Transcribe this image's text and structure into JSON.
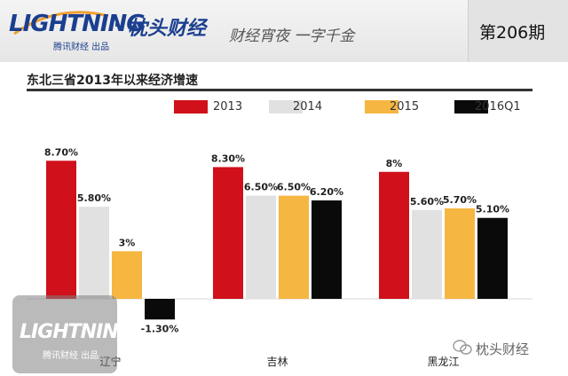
{
  "header": {
    "logo_word": "LIGHTNING",
    "logo_sub": "腾讯财经 出品",
    "brand_dot": "·",
    "brand": "枕头财经",
    "slogan": "财经宵夜 一字千金",
    "issue": "第206期"
  },
  "watermark": {
    "logo_word": "LIGHTNING",
    "logo_sub": "腾讯财经 出品",
    "account": "枕头财经",
    "icon": "wechat-icon"
  },
  "colors": {
    "2013": "#d0101a",
    "2014": "#e1e1e1",
    "2015": "#f5b642",
    "2016Q1": "#0a0a0a"
  },
  "chart_data": {
    "type": "bar",
    "title": "东北三省2013年以来经济增速",
    "categories": [
      "辽宁",
      "吉林",
      "黑龙江"
    ],
    "series": [
      {
        "name": "2013",
        "values": [
          8.7,
          8.3,
          8.0
        ],
        "labels": [
          "8.70%",
          "8.30%",
          "8%"
        ]
      },
      {
        "name": "2014",
        "values": [
          5.8,
          6.5,
          5.6
        ],
        "labels": [
          "5.80%",
          "6.50%",
          "5.60%"
        ]
      },
      {
        "name": "2015",
        "values": [
          3.0,
          6.5,
          5.7
        ],
        "labels": [
          "3%",
          "6.50%",
          "5.70%"
        ]
      },
      {
        "name": "2016Q1",
        "values": [
          -1.3,
          6.2,
          5.1
        ],
        "labels": [
          "-1.30%",
          "6.20%",
          "5.10%"
        ]
      }
    ],
    "xlabel": "",
    "ylabel": "",
    "ylim": [
      -1.5,
      9.5
    ],
    "grid": false,
    "legend": "top"
  }
}
